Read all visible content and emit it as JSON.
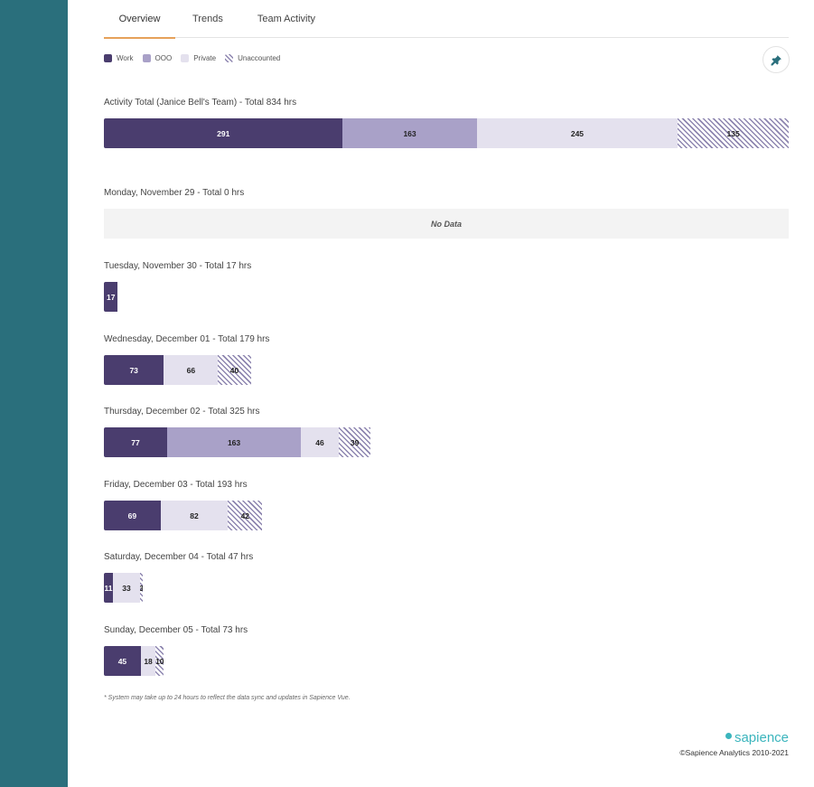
{
  "tabs": [
    {
      "label": "Overview",
      "active": true
    },
    {
      "label": "Trends",
      "active": false
    },
    {
      "label": "Team Activity",
      "active": false
    }
  ],
  "legend": [
    {
      "label": "Work",
      "color": "#4a3d6e"
    },
    {
      "label": "OOO",
      "color": "#a9a1c8"
    },
    {
      "label": "Private",
      "color": "#e4e1ee"
    },
    {
      "label": "Unaccounted",
      "color": "#8e86b0",
      "pattern": "hatched"
    }
  ],
  "pin_icon": "pin-icon",
  "no_data_label": "No Data",
  "chart_data": {
    "type": "bar",
    "orientation": "horizontal-stacked",
    "series_names": [
      "Work",
      "OOO",
      "Private",
      "Unaccounted"
    ],
    "series_colors": {
      "Work": "#4a3d6e",
      "OOO": "#a9a1c8",
      "Private": "#e4e1ee",
      "Unaccounted": "#8e86b0"
    },
    "legend_placement": "top-left",
    "rows": [
      {
        "title": "Activity Total (Janice Bell's Team) - Total 834 hrs",
        "total": 834,
        "values": {
          "Work": 291,
          "OOO": 163,
          "Private": 245,
          "Unaccounted": 135
        }
      },
      {
        "title": "Monday, November 29 - Total 0 hrs",
        "total": 0,
        "values": {}
      },
      {
        "title": "Tuesday, November 30 - Total 17 hrs",
        "total": 17,
        "values": {
          "Work": 17
        }
      },
      {
        "title": "Wednesday, December 01 - Total 179 hrs",
        "total": 179,
        "values": {
          "Work": 73,
          "Private": 66,
          "Unaccounted": 40
        }
      },
      {
        "title": "Thursday, December 02 - Total 325 hrs",
        "total": 325,
        "values": {
          "Work": 77,
          "OOO": 163,
          "Private": 46,
          "Unaccounted": 39
        }
      },
      {
        "title": "Friday, December 03 - Total 193 hrs",
        "total": 193,
        "values": {
          "Work": 69,
          "Private": 82,
          "Unaccounted": 42
        }
      },
      {
        "title": "Saturday, December 04 - Total 47 hrs",
        "total": 47,
        "values": {
          "Work": 11,
          "Private": 33,
          "Unaccounted": 3
        }
      },
      {
        "title": "Sunday, December 05 - Total 73 hrs",
        "total": 73,
        "values": {
          "Work": 45,
          "Private": 18,
          "Unaccounted": 10
        }
      }
    ]
  },
  "footnote": "* System may take up to 24 hours to reflect the data sync and updates in Sapience Vue.",
  "brand": "sapience",
  "copyright": "©Sapience Analytics 2010-2021"
}
